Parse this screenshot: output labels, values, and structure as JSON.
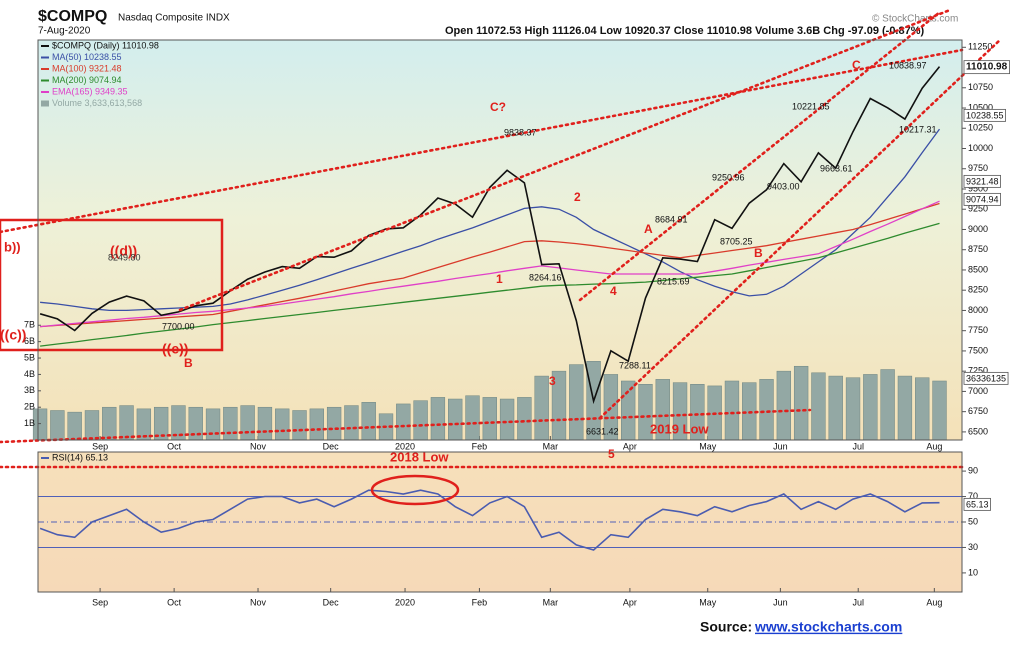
{
  "chart_data": [
    {
      "type": "line",
      "title": "$COMPQ",
      "subtitle": "Nasdaq Composite INDX",
      "date": "7-Aug-2020",
      "stats": "Open 11072.53 High 11126.04 Low 10920.37 Close 11010.98 Volume 3.6B Chg -97.09 (-0.87%)",
      "copyright": "© StockCharts.com",
      "source_label": "Source:",
      "source_url": "www.stockcharts.com",
      "x": [
        0,
        1,
        2,
        3,
        4,
        5,
        6,
        7,
        8,
        9,
        10,
        11,
        12,
        13,
        14,
        15,
        16,
        17,
        18,
        19,
        20,
        21,
        22,
        23,
        24,
        25,
        26,
        27,
        28,
        29,
        30,
        31,
        32,
        33,
        34,
        35,
        36,
        37,
        38,
        39,
        40,
        41,
        42,
        43,
        44,
        45,
        46,
        47,
        48,
        49,
        50,
        51,
        52
      ],
      "xlim": [
        -0.12,
        53.3
      ],
      "xticks": [
        {
          "value": 3.47,
          "label": "Sep"
        },
        {
          "value": 7.75,
          "label": "Oct"
        },
        {
          "value": 12.6,
          "label": "Nov"
        },
        {
          "value": 16.8,
          "label": "Dec"
        },
        {
          "value": 21.1,
          "label": "2020"
        },
        {
          "value": 25.4,
          "label": "Feb"
        },
        {
          "value": 29.5,
          "label": "Mar"
        },
        {
          "value": 34.1,
          "label": "Apr"
        },
        {
          "value": 38.6,
          "label": "May"
        },
        {
          "value": 42.8,
          "label": "Jun"
        },
        {
          "value": 47.3,
          "label": "Jul"
        },
        {
          "value": 51.7,
          "label": "Aug"
        }
      ],
      "ylim": [
        6400,
        11340
      ],
      "yticks": [
        6500,
        6750,
        7000,
        7250,
        7500,
        7750,
        8000,
        8250,
        8500,
        8750,
        9000,
        9250,
        9500,
        9750,
        10000,
        10250,
        10500,
        10750,
        11250
      ],
      "y2lim": [
        0,
        24.4
      ],
      "y2ticks": [
        {
          "value": 1,
          "label": "1B"
        },
        {
          "value": 2,
          "label": "2B"
        },
        {
          "value": 3,
          "label": "3B"
        },
        {
          "value": 4,
          "label": "4B"
        },
        {
          "value": 5,
          "label": "5B"
        },
        {
          "value": 6,
          "label": "6B"
        },
        {
          "value": 7,
          "label": "7B"
        }
      ],
      "series": [
        {
          "name": "$COMPQ (Daily) 11010.98",
          "color": "#111111",
          "values": [
            7959,
            7896,
            7752,
            7963,
            8103,
            8177,
            8118,
            7940,
            7982,
            8057,
            8090,
            8243,
            8386,
            8475,
            8541,
            8520,
            8665,
            8657,
            8735,
            8925,
            9007,
            9021,
            9179,
            9389,
            9315,
            9151,
            9520,
            9731,
            9577,
            8567,
            8576,
            7875,
            6880,
            7502,
            7373,
            8154,
            8650,
            8634,
            8605,
            9121,
            9015,
            9325,
            9490,
            9814,
            9589,
            9946,
            9757,
            10208,
            10617,
            10503,
            10363,
            10745,
            11011
          ]
        },
        {
          "name": "MA(50) 10238.55",
          "color": "#3a4fa6",
          "values": [
            8100,
            8080,
            8050,
            8020,
            8000,
            8000,
            8010,
            8020,
            8030,
            8040,
            8050,
            8080,
            8130,
            8190,
            8250,
            8310,
            8380,
            8450,
            8520,
            8590,
            8660,
            8730,
            8800,
            8880,
            8950,
            9020,
            9100,
            9180,
            9260,
            9280,
            9250,
            9150,
            9000,
            8900,
            8800,
            8700,
            8600,
            8480,
            8380,
            8300,
            8230,
            8180,
            8200,
            8300,
            8450,
            8600,
            8750,
            8950,
            9150,
            9400,
            9650,
            9950,
            10239
          ]
        },
        {
          "name": "MA(100) 9321.48",
          "color": "#d93b2b",
          "values": [
            7800,
            7815,
            7830,
            7845,
            7860,
            7875,
            7890,
            7905,
            7920,
            7935,
            7950,
            7990,
            8030,
            8070,
            8110,
            8150,
            8195,
            8240,
            8285,
            8330,
            8365,
            8400,
            8465,
            8530,
            8595,
            8660,
            8720,
            8785,
            8850,
            8860,
            8845,
            8825,
            8800,
            8770,
            8740,
            8710,
            8680,
            8650,
            8680,
            8710,
            8740,
            8770,
            8800,
            8840,
            8880,
            8920,
            8960,
            9000,
            9060,
            9125,
            9190,
            9255,
            9321
          ]
        },
        {
          "name": "MA(200) 9074.94",
          "color": "#2e8b2e",
          "values": [
            7560,
            7585,
            7610,
            7640,
            7665,
            7690,
            7720,
            7745,
            7770,
            7795,
            7825,
            7850,
            7875,
            7900,
            7925,
            7950,
            7975,
            8000,
            8025,
            8050,
            8075,
            8100,
            8125,
            8150,
            8175,
            8200,
            8225,
            8250,
            8275,
            8300,
            8310,
            8315,
            8325,
            8330,
            8340,
            8350,
            8370,
            8390,
            8410,
            8430,
            8450,
            8490,
            8530,
            8570,
            8610,
            8650,
            8710,
            8770,
            8830,
            8890,
            8955,
            9015,
            9075
          ]
        },
        {
          "name": "EMA(165) 9349.35",
          "color": "#e040c8",
          "values": [
            7800,
            7820,
            7840,
            7860,
            7880,
            7900,
            7915,
            7935,
            7955,
            7975,
            7990,
            8010,
            8030,
            8050,
            8080,
            8110,
            8140,
            8170,
            8205,
            8235,
            8270,
            8300,
            8330,
            8360,
            8395,
            8425,
            8455,
            8490,
            8520,
            8550,
            8525,
            8500,
            8475,
            8450,
            8450,
            8450,
            8450,
            8450,
            8450,
            8485,
            8520,
            8560,
            8595,
            8630,
            8665,
            8700,
            8790,
            8880,
            8975,
            9065,
            9160,
            9255,
            9349
          ]
        },
        {
          "name": "Volume 3,633,613,568",
          "color": "#93a8a4",
          "type": "bar",
          "axis": "y2",
          "values": [
            1.9,
            1.8,
            1.7,
            1.8,
            2.0,
            2.1,
            1.9,
            2.0,
            2.1,
            2.0,
            1.9,
            2.0,
            2.1,
            2.0,
            1.9,
            1.8,
            1.9,
            2.0,
            2.1,
            2.3,
            1.6,
            2.2,
            2.4,
            2.6,
            2.5,
            2.7,
            2.6,
            2.5,
            2.6,
            3.9,
            4.2,
            4.6,
            4.8,
            4.0,
            3.6,
            3.4,
            3.7,
            3.5,
            3.4,
            3.3,
            3.6,
            3.5,
            3.7,
            4.2,
            4.5,
            4.1,
            3.9,
            3.8,
            4.0,
            4.3,
            3.9,
            3.8,
            3.6
          ]
        }
      ],
      "annotations": [
        "b))",
        "((d))",
        "8249.80",
        "((c))",
        "7700.00",
        "((e))",
        "B",
        "C?",
        "9838.37",
        "1",
        "2",
        "8264.16",
        "3",
        "4",
        "6631.42",
        "7288.11",
        "8684.91",
        "A",
        "8215.69",
        "9250.96",
        "8705.25",
        "B",
        "10221.85",
        "9403.00",
        "9663.61",
        "C",
        "10838.97",
        "10217.31",
        "2019 Low",
        "5",
        "36336135",
        "11010.98",
        "10238.55",
        "9321.48",
        "9074.94"
      ]
    },
    {
      "type": "line",
      "x": [
        0,
        1,
        2,
        3,
        4,
        5,
        6,
        7,
        8,
        9,
        10,
        11,
        12,
        13,
        14,
        15,
        16,
        17,
        18,
        19,
        20,
        21,
        22,
        23,
        24,
        25,
        26,
        27,
        28,
        29,
        30,
        31,
        32,
        33,
        34,
        35,
        36,
        37,
        38,
        39,
        40,
        41,
        42,
        43,
        44,
        45,
        46,
        47,
        48,
        49,
        50,
        51,
        52
      ],
      "xlim": [
        -0.12,
        53.3
      ],
      "ylim": [
        -5,
        105
      ],
      "yticks": [
        10,
        30,
        50,
        70,
        90
      ],
      "reference_lines": [
        70,
        50,
        30
      ],
      "series": [
        {
          "name": "RSI(14) 65.13",
          "color": "#4a5cb0",
          "values": [
            45,
            40,
            38,
            50,
            55,
            60,
            50,
            42,
            45,
            50,
            52,
            60,
            68,
            70,
            70,
            65,
            68,
            62,
            68,
            75,
            74,
            72,
            75,
            72,
            62,
            55,
            65,
            70,
            62,
            38,
            42,
            32,
            28,
            40,
            38,
            52,
            60,
            58,
            55,
            62,
            58,
            63,
            66,
            72,
            60,
            66,
            60,
            68,
            72,
            66,
            58,
            65,
            65.13
          ]
        }
      ],
      "annotations": [
        "2018 Low",
        "65.13"
      ]
    }
  ]
}
